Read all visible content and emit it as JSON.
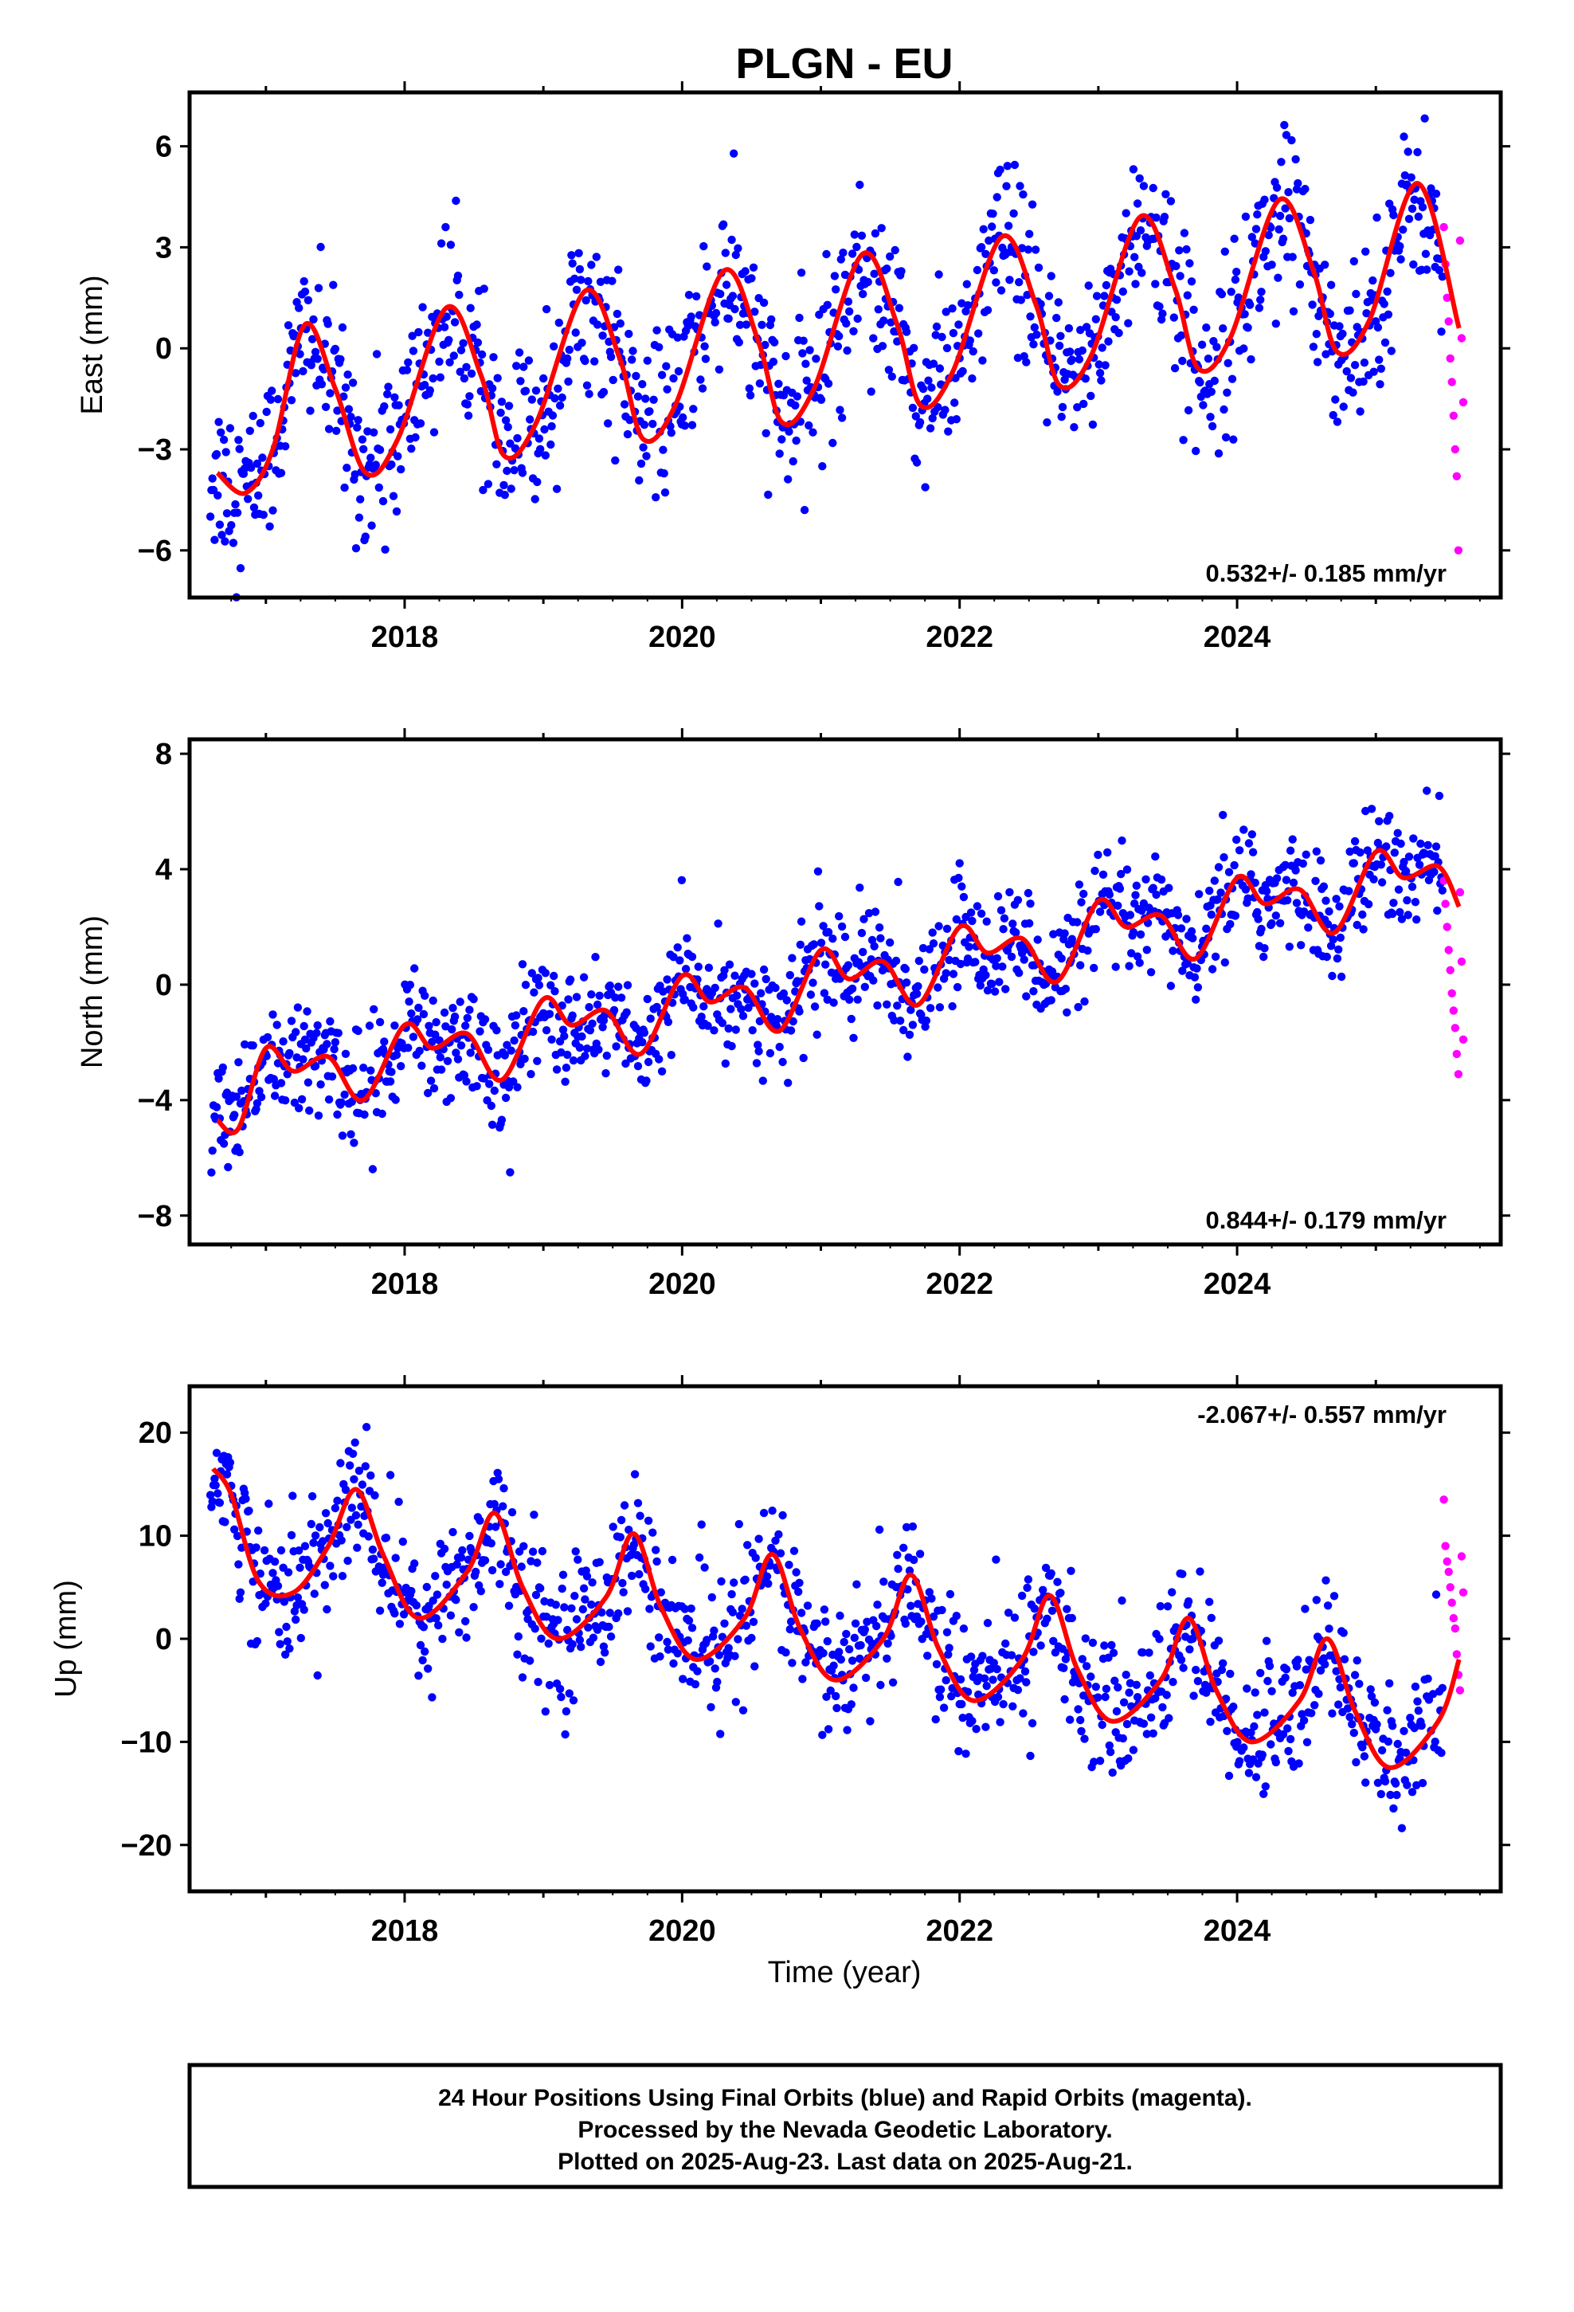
{
  "title": "PLGN - EU",
  "colors": {
    "final": "#0000ff",
    "rapid": "#ff00ff",
    "model": "#ff0000",
    "frame": "#000000"
  },
  "x_axis": {
    "label": "Time (year)",
    "range": [
      2016.45,
      2025.9
    ],
    "ticks": [
      "2018",
      "2020",
      "2022",
      "2024"
    ]
  },
  "footer": {
    "line1": "24 Hour Positions Using Final Orbits (blue) and Rapid Orbits (magenta).",
    "line2": "Processed by the Nevada Geodetic Laboratory.",
    "line3": "Plotted on 2025-Aug-23. Last data on 2025-Aug-21."
  },
  "chart_data": [
    {
      "type": "scatter",
      "ylabel": "East (mm)",
      "ylim": [
        -7.4,
        7.6
      ],
      "yticks": [
        "6",
        "3",
        "0",
        "−3",
        "−6"
      ],
      "rate_text": "0.532+/- 0.185 mm/yr",
      "rate_pos": "bottom-right",
      "model": {
        "x": [
          2016.65,
          2016.85,
          2017.05,
          2017.28,
          2017.5,
          2017.72,
          2017.95,
          2018.3,
          2018.55,
          2018.72,
          2018.95,
          2019.3,
          2019.55,
          2019.72,
          2019.95,
          2020.3,
          2020.55,
          2020.72,
          2020.95,
          2021.3,
          2021.55,
          2021.72,
          2021.95,
          2022.3,
          2022.55,
          2022.72,
          2022.95,
          2023.3,
          2023.55,
          2023.72,
          2023.95,
          2024.3,
          2024.55,
          2024.72,
          2024.95,
          2025.3,
          2025.6
        ],
        "y": [
          -3.7,
          -4.3,
          -3.0,
          0.7,
          -1.2,
          -3.7,
          -2.7,
          1.2,
          -0.8,
          -3.2,
          -2.2,
          1.7,
          -0.3,
          -2.7,
          -1.7,
          2.3,
          0.2,
          -2.2,
          -1.2,
          2.8,
          0.7,
          -1.7,
          -0.7,
          3.3,
          1.3,
          -1.1,
          -0.2,
          3.9,
          1.8,
          -0.6,
          0.3,
          4.4,
          2.3,
          -0.1,
          0.8,
          4.9,
          0.6
        ]
      },
      "annual": {
        "amplitude": 2.4,
        "phase_peak": 0.28,
        "semi_amplitude": 0.0,
        "intercept_2016": -3.2,
        "trend": 0.532,
        "noise_sd": 1.25
      },
      "rapid": {
        "x_start": 2025.49,
        "x_end": 2025.63,
        "y": [
          3.6,
          2.5,
          1.5,
          0.8,
          -0.3,
          -1.0,
          -2.0,
          -3.0,
          -3.8,
          -6.0,
          3.2,
          0.3,
          -1.6
        ]
      }
    },
    {
      "type": "scatter",
      "ylabel": "North (mm)",
      "ylim": [
        -9.0,
        8.5
      ],
      "yticks": [
        "8",
        "4",
        "0",
        "−4",
        "−8"
      ],
      "rate_text": "0.844+/- 0.179 mm/yr",
      "rate_pos": "bottom-right",
      "model": {
        "x": [
          2016.65,
          2016.8,
          2017.0,
          2017.2,
          2017.45,
          2017.7,
          2018.0,
          2018.2,
          2018.45,
          2018.7,
          2019.0,
          2019.2,
          2019.45,
          2019.7,
          2020.0,
          2020.2,
          2020.45,
          2020.7,
          2021.0,
          2021.2,
          2021.45,
          2021.7,
          2022.0,
          2022.2,
          2022.45,
          2022.7,
          2023.0,
          2023.2,
          2023.45,
          2023.7,
          2024.0,
          2024.2,
          2024.45,
          2024.7,
          2025.0,
          2025.2,
          2025.45,
          2025.6
        ],
        "y": [
          -4.7,
          -5.0,
          -2.2,
          -3.0,
          -2.5,
          -4.0,
          -1.4,
          -2.2,
          -1.7,
          -3.3,
          -0.5,
          -1.4,
          -0.9,
          -2.4,
          0.3,
          -0.6,
          -0.1,
          -1.6,
          1.2,
          0.2,
          0.8,
          -0.7,
          2.0,
          1.1,
          1.6,
          0.1,
          2.9,
          2.0,
          2.4,
          0.9,
          3.7,
          2.8,
          3.3,
          1.8,
          4.6,
          3.7,
          4.1,
          2.7
        ]
      },
      "annual": {
        "amplitude": 0.9,
        "phase_peak": 0.0,
        "semi_amplitude": 0.6,
        "intercept_2016": -3.7,
        "trend": 0.844,
        "noise_sd": 1.0
      },
      "rapid": {
        "x_start": 2025.49,
        "x_end": 2025.63,
        "y": [
          3.6,
          2.8,
          2.0,
          1.2,
          0.5,
          -0.3,
          -0.9,
          -1.5,
          -2.4,
          -3.1,
          3.2,
          0.8,
          -1.9
        ]
      }
    },
    {
      "type": "scatter",
      "ylabel": "Up (mm)",
      "ylim": [
        -24.5,
        24.5
      ],
      "yticks": [
        "20",
        "10",
        "0",
        "−10",
        "−20"
      ],
      "rate_text": "-2.067+/- 0.557 mm/yr",
      "rate_pos": "top-right",
      "model": {
        "x": [
          2016.62,
          2016.75,
          2016.95,
          2017.2,
          2017.45,
          2017.65,
          2017.85,
          2018.1,
          2018.45,
          2018.65,
          2018.85,
          2019.1,
          2019.45,
          2019.65,
          2019.85,
          2020.1,
          2020.45,
          2020.65,
          2020.85,
          2021.1,
          2021.45,
          2021.65,
          2021.85,
          2022.1,
          2022.45,
          2022.65,
          2022.85,
          2023.1,
          2023.45,
          2023.65,
          2023.85,
          2024.1,
          2024.45,
          2024.65,
          2024.85,
          2025.1,
          2025.45,
          2025.6
        ],
        "y": [
          16.5,
          14.0,
          5.5,
          4.5,
          9.0,
          14.5,
          8.0,
          2.0,
          6.5,
          12.2,
          5.0,
          0.0,
          4.0,
          10.2,
          3.0,
          -2.0,
          2.0,
          8.2,
          1.0,
          -4.0,
          0.0,
          6.2,
          -1.0,
          -6.0,
          -2.0,
          4.2,
          -3.0,
          -8.0,
          -4.0,
          2.0,
          -5.0,
          -10.0,
          -6.0,
          0.0,
          -7.0,
          -12.5,
          -8.0,
          -2.0
        ]
      },
      "annual": {
        "amplitude": 5.5,
        "phase_peak": 0.65,
        "semi_amplitude": 0.0,
        "intercept_2016": 11.0,
        "trend": -2.067,
        "noise_sd": 3.3
      },
      "rapid": {
        "x_start": 2025.49,
        "x_end": 2025.63,
        "y": [
          13.5,
          9.0,
          7.5,
          6.5,
          5.0,
          3.5,
          2.0,
          1.0,
          -1.5,
          -3.5,
          -5.0,
          8.0,
          4.5
        ]
      }
    }
  ]
}
